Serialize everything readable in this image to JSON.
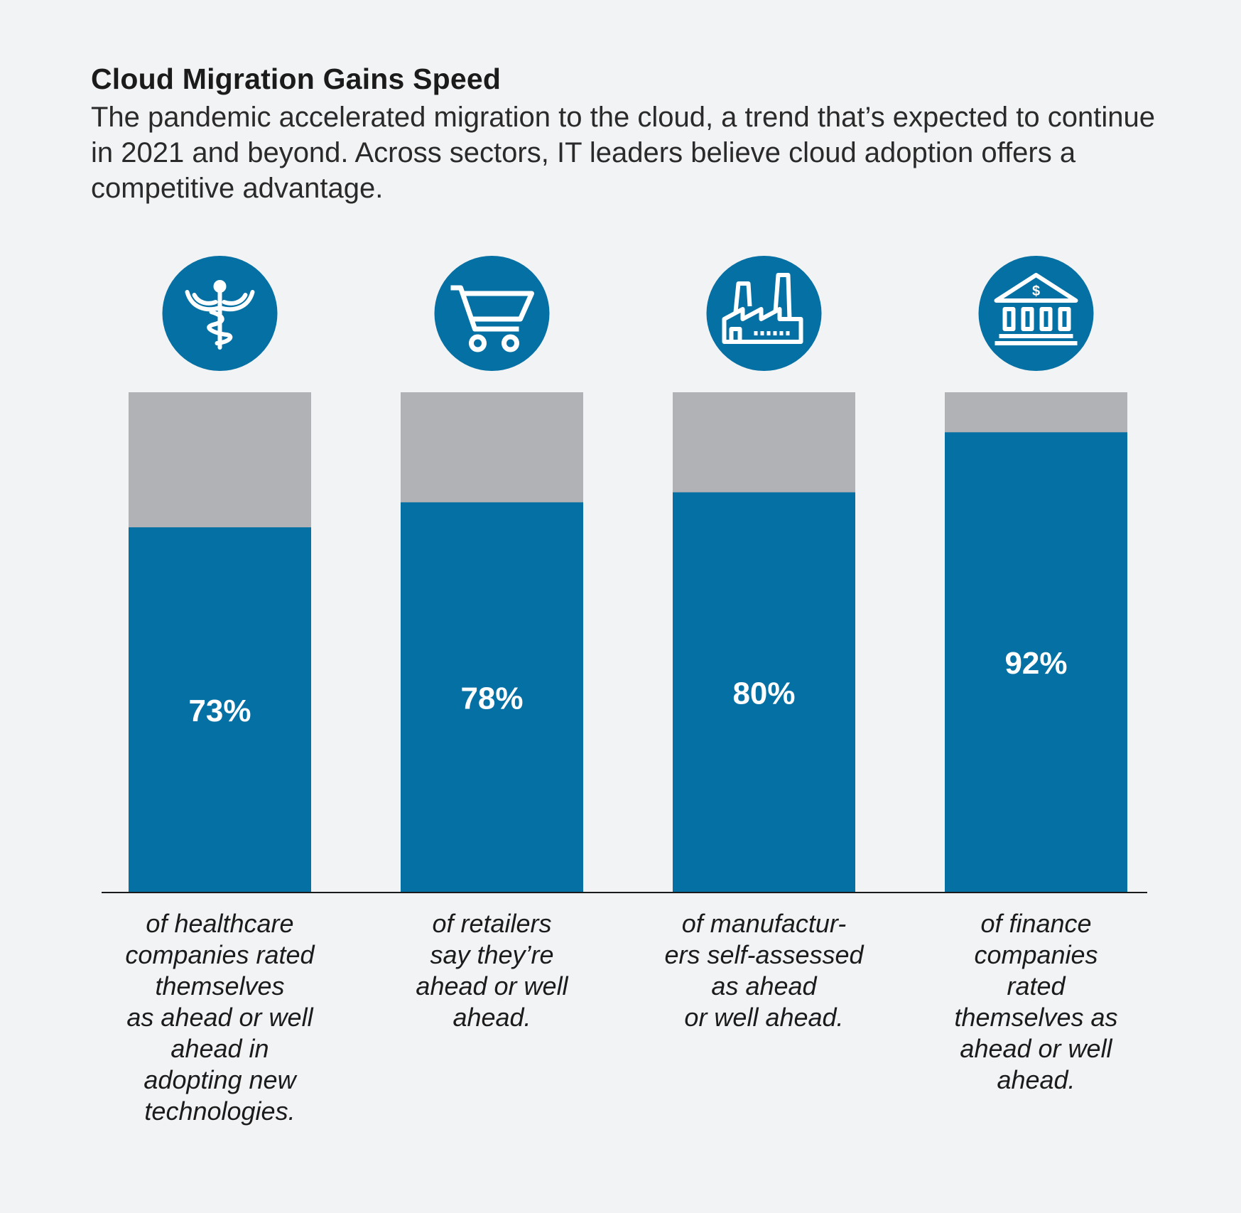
{
  "title": "Cloud Migration Gains Speed",
  "subtitle": "The pandemic accelerated migration to the cloud, a trend that’s expected to continue in 2021 and beyond. Across sectors, IT leaders believe cloud adoption offers a competitive advantage.",
  "colors": {
    "bar": "#0570a3",
    "remainder": "#b1b2b5",
    "icon_circle": "#0570a3",
    "background": "#f2f3f5"
  },
  "chart_data": {
    "type": "bar",
    "stacked_to": 100,
    "ylim": [
      0,
      100
    ],
    "categories": [
      "healthcare",
      "retail",
      "manufacturing",
      "finance"
    ],
    "values": [
      73,
      78,
      80,
      92
    ],
    "value_labels": [
      "73%",
      "78%",
      "80%",
      "92%"
    ],
    "icons": [
      "caduceus-icon",
      "shopping-cart-icon",
      "factory-icon",
      "bank-icon"
    ],
    "captions": [
      "of healthcare\ncompanies rated\nthemselves\nas ahead or well\nahead in\nadopting new\ntechnologies.",
      "of retailers\nsay they’re\nahead or well\nahead.",
      "of manufactur-\ners self-assessed\nas ahead\nor well ahead.",
      "of finance\ncompanies\nrated\nthemselves as\nahead or well\nahead."
    ]
  }
}
